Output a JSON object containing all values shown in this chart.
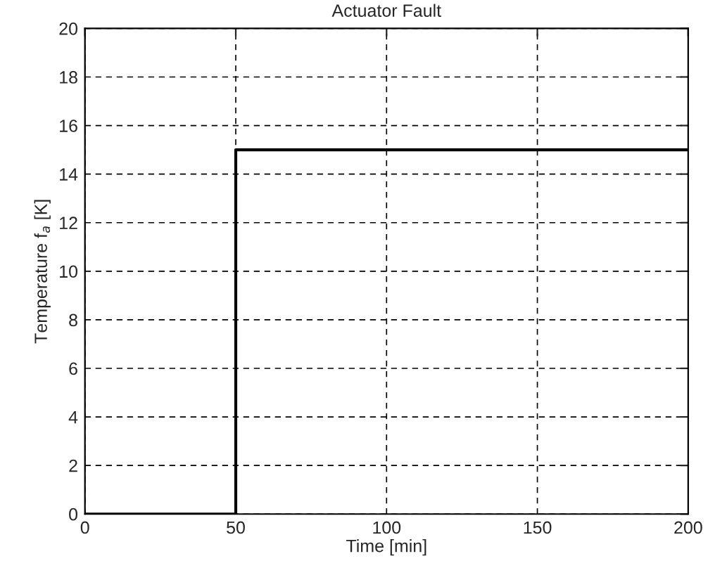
{
  "chart_data": {
    "type": "step",
    "title": "Actuator Fault",
    "xlabel": "Time [min]",
    "ylabel": "Temperature f$_{a}$ [K]",
    "x": [
      0,
      50,
      200
    ],
    "series": [
      {
        "color": "#000000",
        "values": [
          0,
          15,
          15
        ]
      }
    ],
    "xlim": [
      0,
      200
    ],
    "xticks": [
      0,
      50,
      100,
      150,
      200
    ],
    "ylim": [
      0,
      20
    ],
    "yticks": [
      0,
      2,
      4,
      6,
      8,
      10,
      12,
      14,
      16,
      18,
      20
    ],
    "grid": true,
    "legend": false,
    "line_style": "solid",
    "marker": "none"
  }
}
